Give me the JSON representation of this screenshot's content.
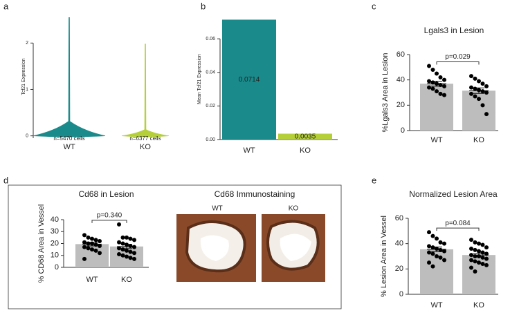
{
  "chart_data": [
    {
      "type": "violin",
      "panel": "a",
      "ylabel": "Tcf21 Expression",
      "categories": [
        "WT",
        "KO"
      ],
      "max": [
        2.55,
        1.98
      ],
      "annotations": [
        "n=5470 cells",
        "n=6377 cells"
      ],
      "colors": [
        "#1a8a8a",
        "#b5cf3b"
      ],
      "ylim": [
        -0.05,
        2.6
      ],
      "yticks": [
        0,
        1,
        2
      ]
    },
    {
      "type": "bar",
      "panel": "b",
      "ylabel": "Mean Tcf21 Expression",
      "categories": [
        "WT",
        "KO"
      ],
      "values": [
        0.0714,
        0.0035
      ],
      "value_labels": [
        "0.0714",
        "0.0035"
      ],
      "colors": [
        "#1a8a8a",
        "#b5cf3b"
      ],
      "ylim": [
        0,
        0.072
      ],
      "yticks": [
        {
          "value": 0,
          "label": "0.00"
        },
        {
          "value": 0.02,
          "label": "0.02"
        },
        {
          "value": 0.04,
          "label": "0.04"
        },
        {
          "value": 0.06,
          "label": "0.06"
        }
      ]
    },
    {
      "type": "bar_scatter",
      "panel": "c",
      "title": "Lgals3 in Lesion",
      "ylabel": "%Lgals3 Area in Lesion",
      "annotation": "p=0.029",
      "categories": [
        "WT",
        "KO"
      ],
      "values": [
        37,
        31.5
      ],
      "errors": [
        2.0,
        2.2
      ],
      "points": [
        [
          51,
          48,
          45,
          42,
          40,
          39,
          38,
          37,
          36,
          35,
          34,
          33,
          31,
          29,
          28
        ],
        [
          43,
          41,
          39,
          37,
          35,
          34,
          33,
          32,
          31,
          30,
          29,
          27,
          25,
          20,
          13
        ]
      ],
      "color": "#bdbdbd",
      "ylim": [
        0,
        60
      ],
      "yticks": [
        0,
        20,
        40,
        60
      ]
    },
    {
      "type": "bar_scatter",
      "panel": "d",
      "title": "Cd68 in Lesion",
      "ylabel": "% CD68 Area in Vessel",
      "annotation": "p=0.340",
      "categories": [
        "WT",
        "KO"
      ],
      "values": [
        19.5,
        17.5
      ],
      "errors": [
        1.5,
        1.8
      ],
      "points": [
        [
          27,
          25,
          24,
          23,
          22,
          21,
          20,
          20,
          19,
          18,
          17,
          16,
          15,
          14,
          12,
          7
        ],
        [
          36,
          25,
          25,
          24,
          23,
          21,
          20,
          19,
          18,
          17,
          16,
          15,
          14,
          13,
          12,
          11,
          10,
          9,
          8,
          7
        ]
      ],
      "color": "#bdbdbd",
      "ylim": [
        0,
        40
      ],
      "yticks": [
        0,
        10,
        20,
        30,
        40
      ],
      "images_title": "Cd68 Immunostaining",
      "image_labels": [
        "WT",
        "KO"
      ]
    },
    {
      "type": "bar_scatter",
      "panel": "e",
      "title": "Normalized Lesion Area",
      "ylabel": "% Lesion Area in Vessel",
      "annotation": "p=0.084",
      "categories": [
        "WT",
        "KO"
      ],
      "values": [
        35.5,
        31
      ],
      "errors": [
        1.8,
        1.4
      ],
      "points": [
        [
          49,
          46,
          44,
          41,
          40,
          38,
          37,
          36,
          35,
          34,
          33,
          32,
          30,
          29,
          27,
          25,
          22
        ],
        [
          43,
          41,
          40,
          39,
          37,
          36,
          35,
          34,
          33,
          32,
          31,
          30,
          30,
          29,
          28,
          27,
          26,
          25,
          24,
          23,
          21,
          18
        ]
      ],
      "color": "#bdbdbd",
      "ylim": [
        0,
        60
      ],
      "yticks": [
        0,
        20,
        40,
        60
      ]
    }
  ]
}
